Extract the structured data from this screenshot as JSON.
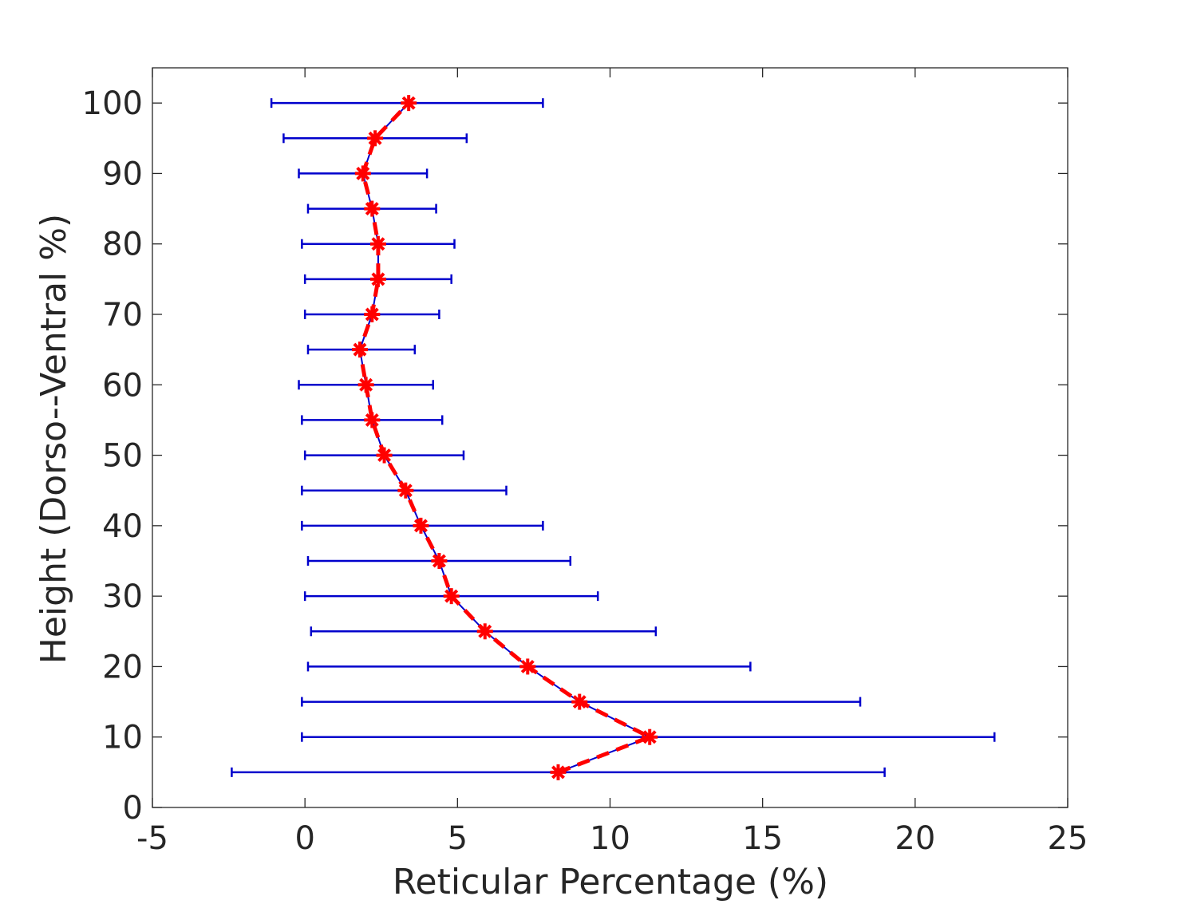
{
  "chart_data": {
    "type": "scatter",
    "title": "",
    "xlabel": "Reticular Percentage (%)",
    "ylabel": "Height (Dorso--Ventral %)",
    "xlim": [
      -5,
      25
    ],
    "ylim": [
      0,
      105
    ],
    "xticks": [
      -5,
      0,
      5,
      10,
      15,
      20,
      25
    ],
    "yticks": [
      0,
      10,
      20,
      30,
      40,
      50,
      60,
      70,
      80,
      90,
      100
    ],
    "xtick_labels": [
      "-5",
      "0",
      "5",
      "10",
      "15",
      "20",
      "25"
    ],
    "ytick_labels": [
      "0",
      "10",
      "20",
      "30",
      "40",
      "50",
      "60",
      "70",
      "80",
      "90",
      "100"
    ],
    "grid": false,
    "box": true,
    "colors": {
      "mean_line": "#ff0000",
      "errorbar": "#0000cc",
      "axis": "#262626"
    },
    "series": [
      {
        "marker": "asterisk",
        "orientation": "horizontal-errorbars",
        "y": [
          5,
          10,
          15,
          20,
          25,
          30,
          35,
          40,
          45,
          50,
          55,
          60,
          65,
          70,
          75,
          80,
          85,
          90,
          95,
          100
        ],
        "x": [
          8.3,
          11.3,
          9.0,
          7.3,
          5.9,
          4.8,
          4.4,
          3.8,
          3.3,
          2.6,
          2.2,
          2.0,
          1.8,
          2.2,
          2.4,
          2.4,
          2.2,
          1.9,
          2.3,
          3.4
        ],
        "x_low": [
          -2.4,
          -0.1,
          -0.1,
          0.1,
          0.2,
          0.0,
          0.1,
          -0.1,
          -0.1,
          0.0,
          -0.1,
          -0.2,
          0.1,
          0.0,
          0.0,
          -0.1,
          0.1,
          -0.2,
          -0.7,
          -1.1
        ],
        "x_high": [
          19.0,
          22.6,
          18.2,
          14.6,
          11.5,
          9.6,
          8.7,
          7.8,
          6.6,
          5.2,
          4.5,
          4.2,
          3.6,
          4.4,
          4.8,
          4.9,
          4.3,
          4.0,
          5.3,
          7.8
        ]
      }
    ]
  }
}
